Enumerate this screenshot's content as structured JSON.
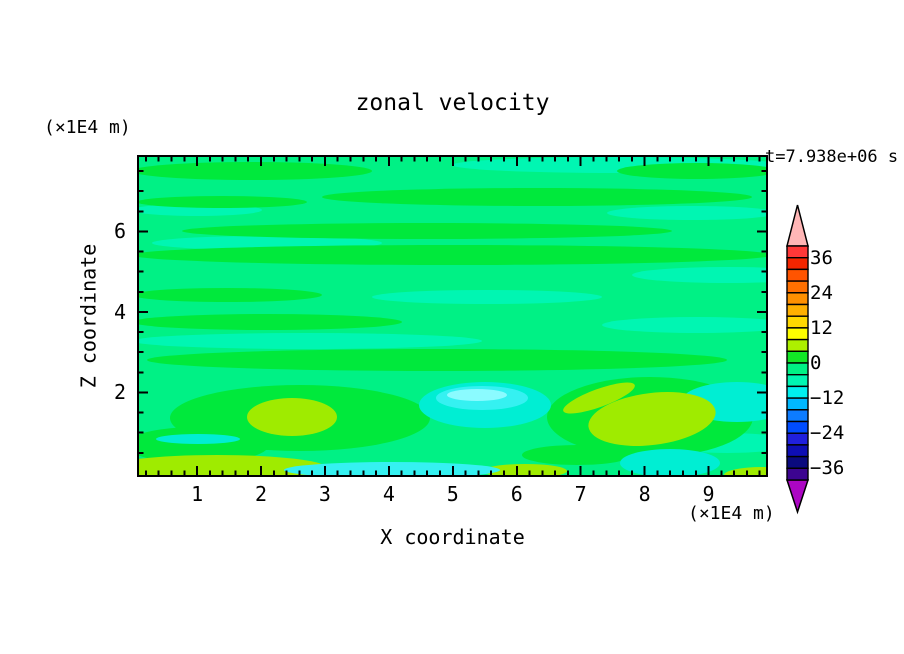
{
  "chart_data": {
    "type": "heatmap",
    "subtype": "filled-contour",
    "title": "zonal velocity",
    "annotation": "t=7.938e+06 s",
    "xlabel": "X coordinate",
    "ylabel": "Z coordinate",
    "x_unit": "(×1E4 m)",
    "y_unit": "(×1E4 m)",
    "xlim": [
      0,
      10
    ],
    "zlim": [
      0,
      8
    ],
    "x_tick_values": [
      1,
      2,
      3,
      4,
      5,
      6,
      7,
      8,
      9
    ],
    "x_tick_labels": [
      "1",
      "2",
      "3",
      "4",
      "5",
      "6",
      "7",
      "8",
      "9"
    ],
    "x_minor_step": 0.2,
    "y_tick_values": [
      2,
      4,
      6
    ],
    "y_tick_labels": [
      "2",
      "4",
      "6"
    ],
    "y_minor_step": 0.5,
    "grid": false,
    "legend_position": "right-colorbar",
    "colorbar": {
      "range": [
        -40,
        40
      ],
      "interval": 4,
      "tick_values": [
        36,
        24,
        12,
        0,
        -12,
        -24,
        -36
      ],
      "tick_labels": [
        "36",
        "24",
        "12",
        "0",
        "−12",
        "−24",
        "−36"
      ],
      "colors_top_to_bottom": [
        "#FF3838",
        "#F32500",
        "#FF5400",
        "#FF7000",
        "#FF9000",
        "#FFB000",
        "#FFD800",
        "#FFFF00",
        "#ADF000",
        "#12E626",
        "#00F185",
        "#00F6B2",
        "#00EFEF",
        "#00B8FF",
        "#0D7CFF",
        "#004CFF",
        "#2020DD",
        "#0E0EB4",
        "#0A0A7E",
        "#3C0490"
      ],
      "over_arrow_color": "#FFB6B6",
      "under_arrow_color": "#AC06C3"
    },
    "field": {
      "dominant_bands": "background mostly 0 to −4 (spring green) with horizontal streaks of 0 to 4 (green) and −4 to −8 (mint) across the full width",
      "regions": [
        {
          "band": "4 to 8",
          "x": [
            1.8,
            3.2
          ],
          "z": [
            0.9,
            1.9
          ],
          "note": "chartreuse blob lower left"
        },
        {
          "band": "4 to 8",
          "x": [
            7.0,
            9.4
          ],
          "z": [
            0.8,
            2.1
          ],
          "note": "chartreuse blob lower right"
        },
        {
          "band": "4 to 8",
          "x": [
            0.0,
            2.8
          ],
          "z": [
            0.0,
            0.5
          ],
          "note": "chartreuse strip along bottom left"
        },
        {
          "band": "4 to 8",
          "x": [
            5.5,
            6.6
          ],
          "z": [
            0.0,
            0.3
          ],
          "note": "small chartreuse strip at bottom"
        },
        {
          "band": "4 to 8",
          "x": [
            9.2,
            9.9
          ],
          "z": [
            0.0,
            0.3
          ],
          "note": "chartreuse sliver bottom right corner"
        },
        {
          "band": "-8 to -16",
          "x": [
            4.4,
            6.4
          ],
          "z": [
            1.2,
            2.4
          ],
          "note": "cyan/turquoise pool with lighter core"
        },
        {
          "band": "-8 to -12",
          "x": [
            8.5,
            9.9
          ],
          "z": [
            0.9,
            2.3
          ],
          "note": "turquoise area at right edge"
        },
        {
          "band": "-8 to -12",
          "x": [
            2.4,
            5.6
          ],
          "z": [
            0.0,
            0.4
          ],
          "note": "cyan strip along bottom"
        },
        {
          "band": "-8 to -12",
          "x": [
            7.6,
            9.0
          ],
          "z": [
            0.0,
            0.7
          ],
          "note": "turquoise blob at bottom"
        },
        {
          "band": "-8 to -12",
          "x": [
            0.3,
            1.6
          ],
          "z": [
            0.8,
            1.1
          ],
          "note": "thin turquoise dash left"
        }
      ]
    }
  },
  "palette": {
    "spring": "#00F185",
    "green": "#00E93C",
    "mint": "#00F6B2",
    "turquoise": "#00EED3",
    "cyan": "#35F1F1",
    "lightcyan": "#8BFBFF",
    "chartreuse": "#9FEB00"
  }
}
